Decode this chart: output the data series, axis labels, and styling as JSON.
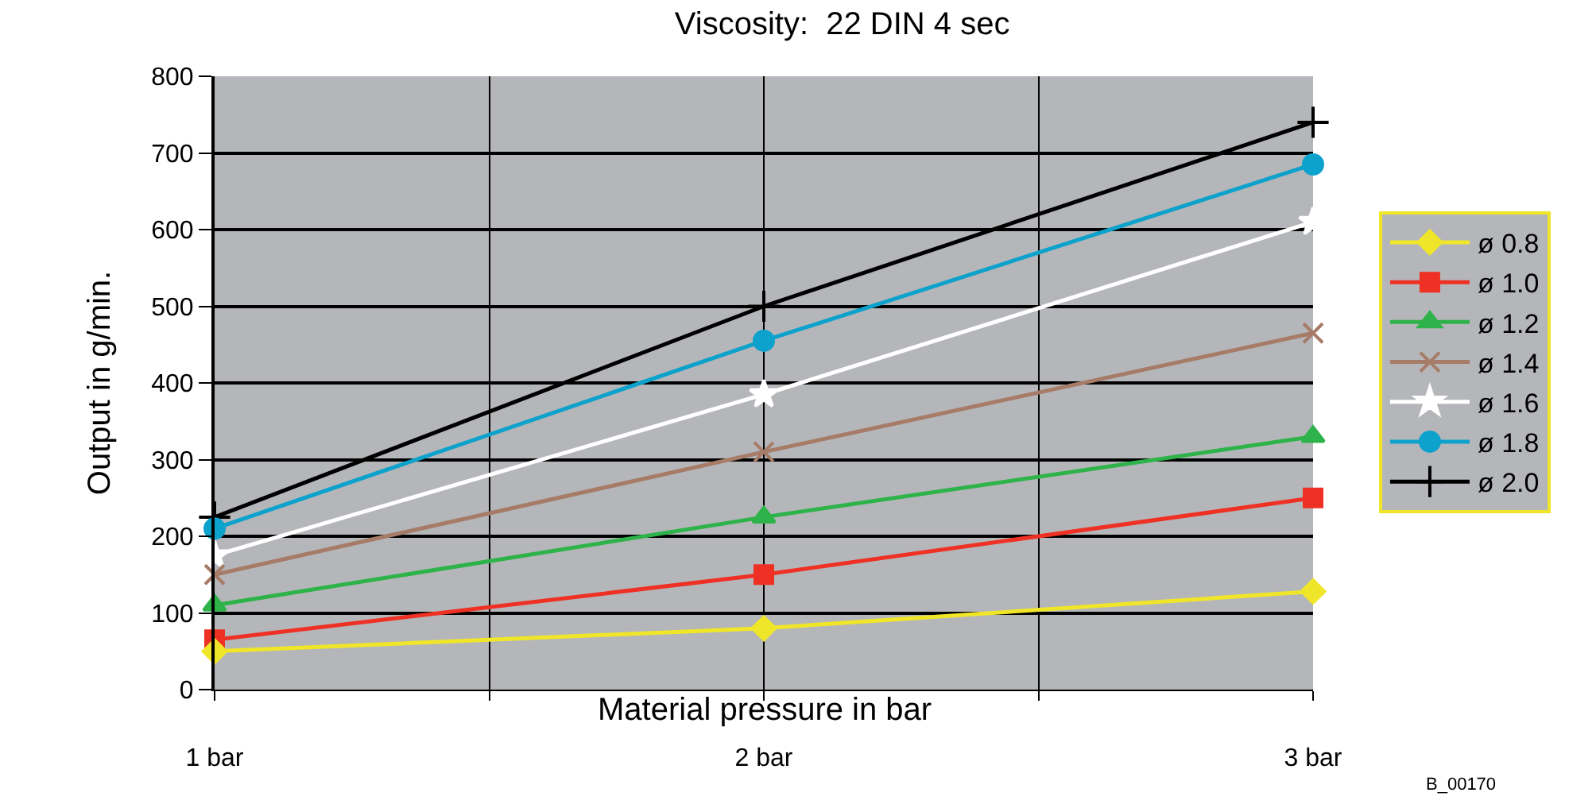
{
  "chart_data": {
    "type": "line",
    "title": "Viscosity:  22 DIN 4 sec",
    "xlabel": "Material pressure in bar",
    "ylabel": "Output in g/min.",
    "annotations": [
      "B_00170"
    ],
    "x": [
      1,
      2,
      3
    ],
    "xlim": [
      1,
      3
    ],
    "xticks": [
      {
        "value": 1,
        "label": "1 bar"
      },
      {
        "value": 1.5,
        "label": null
      },
      {
        "value": 2,
        "label": "2 bar"
      },
      {
        "value": 2.5,
        "label": null
      },
      {
        "value": 3,
        "label": "3 bar"
      }
    ],
    "ylim": [
      0,
      800
    ],
    "yticks": [
      0,
      100,
      200,
      300,
      400,
      500,
      600,
      700,
      800
    ],
    "grid": true,
    "legend": "right",
    "series": [
      {
        "name": "ø 0.8",
        "color": "#f0e629",
        "marker": "diamond",
        "values": [
          50,
          80,
          128
        ]
      },
      {
        "name": "ø 1.0",
        "color": "#ee3124",
        "marker": "square",
        "values": [
          65,
          150,
          250
        ]
      },
      {
        "name": "ø 1.2",
        "color": "#2eb34a",
        "marker": "triangle",
        "values": [
          110,
          225,
          330
        ]
      },
      {
        "name": "ø 1.4",
        "color": "#a67c68",
        "marker": "x",
        "values": [
          150,
          310,
          465
        ]
      },
      {
        "name": "ø 1.6",
        "color": "#ffffff",
        "marker": "star",
        "values": [
          175,
          385,
          610
        ]
      },
      {
        "name": "ø 1.8",
        "color": "#0da2cc",
        "marker": "circle",
        "values": [
          210,
          455,
          685
        ]
      },
      {
        "name": "ø 2.0",
        "color": "#000000",
        "marker": "cross",
        "values": [
          225,
          500,
          740
        ]
      }
    ]
  }
}
